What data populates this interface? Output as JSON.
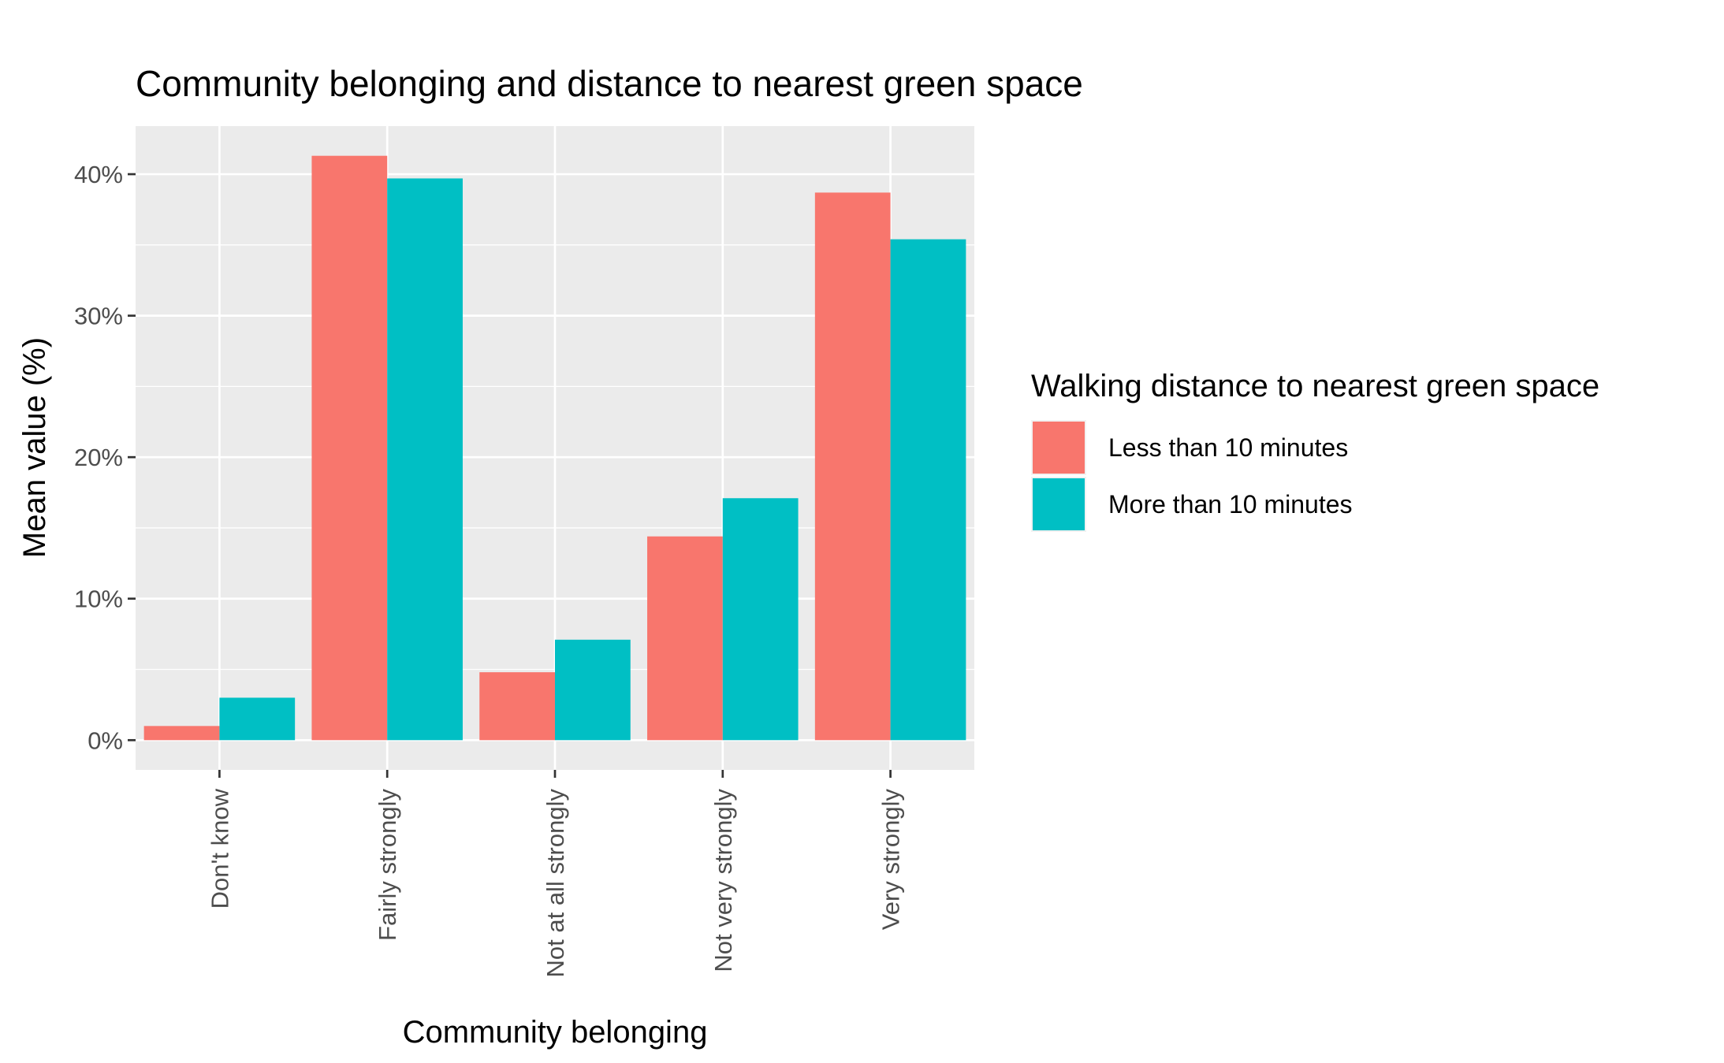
{
  "chart_data": {
    "type": "bar",
    "title": "Community belonging and distance to nearest green space",
    "xlabel": "Community belonging",
    "ylabel": "Mean value (%)",
    "categories": [
      "Don't know",
      "Fairly strongly",
      "Not at all strongly",
      "Not very strongly",
      "Very strongly"
    ],
    "series": [
      {
        "name": "Less than 10 minutes",
        "color": "#F8766D",
        "values": [
          1.0,
          41.3,
          4.8,
          14.4,
          38.7
        ]
      },
      {
        "name": "More than 10 minutes",
        "color": "#00BFC4",
        "values": [
          3.0,
          39.7,
          7.1,
          17.1,
          35.4
        ]
      }
    ],
    "ylim": [
      -2.1,
      43.4
    ],
    "yticks": [
      0,
      10,
      20,
      30,
      40
    ],
    "ytick_labels": [
      "0%",
      "10%",
      "20%",
      "30%",
      "40%"
    ],
    "grid": true,
    "panel_background": "#EBEBEB",
    "legend": {
      "title": "Walking distance to nearest green space",
      "position": "right"
    }
  }
}
